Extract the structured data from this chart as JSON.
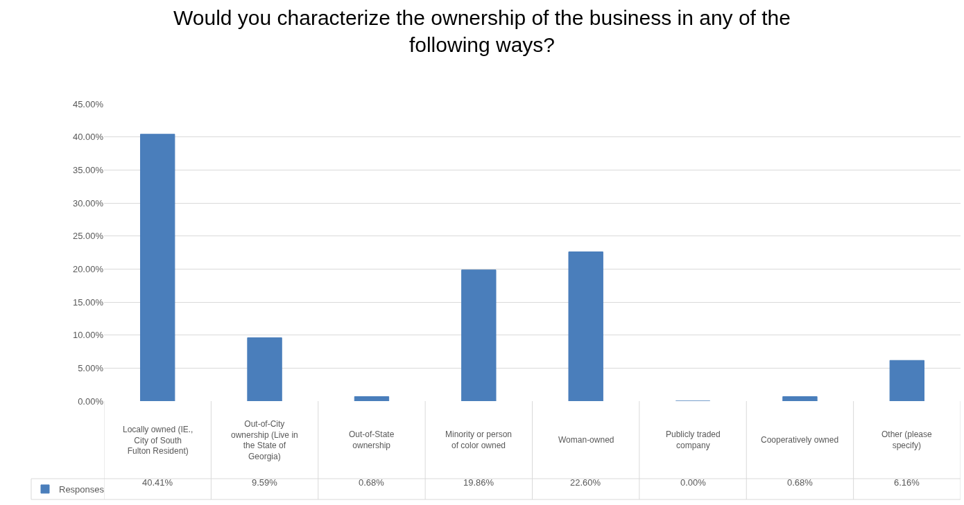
{
  "chart_data": {
    "type": "bar",
    "title": "Would you characterize the ownership of the business in any of the following ways?",
    "categories": [
      "Locally owned (IE., City of South Fulton Resident)",
      "Out-of-City ownership (Live in the State of Georgia)",
      "Out-of-State ownership",
      "Minority or person of color owned",
      "Woman-owned",
      "Publicly traded company",
      "Cooperatively owned",
      "Other (please specify)"
    ],
    "series": [
      {
        "name": "Responses",
        "color": "#4a7ebb",
        "values": [
          40.41,
          9.59,
          0.68,
          19.86,
          22.6,
          0.0,
          0.68,
          6.16
        ],
        "value_labels": [
          "40.41%",
          "9.59%",
          "0.68%",
          "19.86%",
          "22.60%",
          "0.00%",
          "0.68%",
          "6.16%"
        ]
      }
    ],
    "ylim": [
      0,
      45
    ],
    "yticks": [
      {
        "value": 0,
        "label": "0.00%"
      },
      {
        "value": 5,
        "label": "5.00%"
      },
      {
        "value": 10,
        "label": "10.00%"
      },
      {
        "value": 15,
        "label": "15.00%"
      },
      {
        "value": 20,
        "label": "20.00%"
      },
      {
        "value": 25,
        "label": "25.00%"
      },
      {
        "value": 30,
        "label": "30.00%"
      },
      {
        "value": 35,
        "label": "35.00%"
      },
      {
        "value": 40,
        "label": "40.00%"
      },
      {
        "value": 45,
        "label": "45.00%"
      }
    ],
    "grid": "y",
    "legend": "bottom left"
  }
}
